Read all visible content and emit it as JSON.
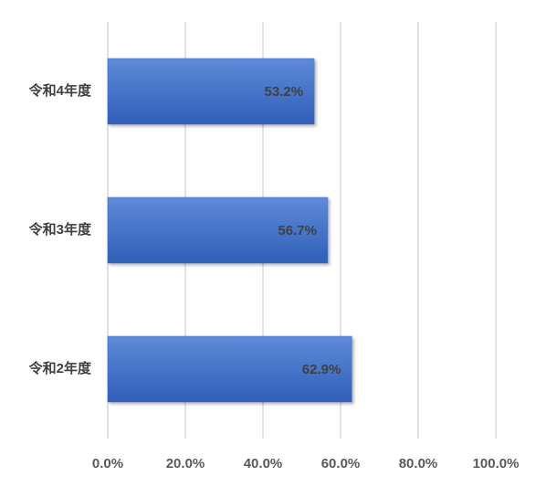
{
  "chart_data": {
    "type": "barh",
    "categories": [
      "令和4年度",
      "令和3年度",
      "令和2年度"
    ],
    "values": [
      53.2,
      56.7,
      62.9
    ],
    "value_labels": [
      "53.2%",
      "56.7%",
      "62.9%"
    ],
    "color": "#4472c4",
    "xlim": [
      0,
      100
    ],
    "xticks": [
      {
        "value": 0,
        "label": "0.0%"
      },
      {
        "value": 20,
        "label": "20.0%"
      },
      {
        "value": 40,
        "label": "40.0%"
      },
      {
        "value": 60,
        "label": "60.0%"
      },
      {
        "value": 80,
        "label": "80.0%"
      },
      {
        "value": 100,
        "label": "100.0%"
      }
    ],
    "grid": true
  }
}
